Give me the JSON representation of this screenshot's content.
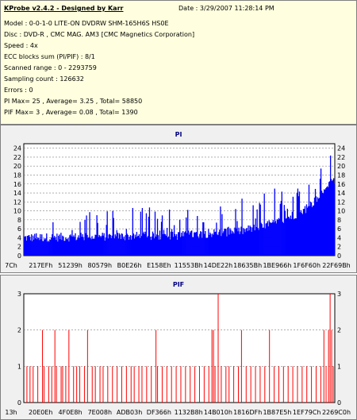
{
  "info": {
    "title": "KProbe v2.4.2 - Designed by Karr",
    "date": "Date : 3/29/2007 11:28:14 PM",
    "lines": [
      "Model : 0-0-1-0 LITE-ON DVDRW SHM-165H6S HS0E",
      "Disc : DVD-R , CMC MAG. AM3 [CMC Magnetics Corporation]",
      "Speed : 4x",
      "ECC blocks sum (PI/PIF) : 8/1",
      "Scanned range : 0 - 2293759",
      "Sampling count : 126632",
      "Errors : 0",
      "PI Max= 25 , Average= 3.25 , Total= 58850",
      "PIF Max= 3 , Average= 0.08 , Total= 1390"
    ]
  },
  "colors": {
    "pi_bars": "#0000ff",
    "pif_bars": "#ff0000",
    "panel_bg": "#f0f0f0",
    "title": "#000080"
  },
  "chart_data": [
    {
      "type": "bar",
      "title": "PI",
      "ylim": [
        0,
        25
      ],
      "yticks": [
        0,
        2,
        4,
        6,
        8,
        10,
        12,
        14,
        16,
        18,
        20,
        22,
        24
      ],
      "xtick_labels": [
        "7Ch",
        "217EFh",
        "51239h",
        "80579h",
        "B0E26h",
        "E158Eh",
        "11553Bh",
        "14DE22h",
        "18635Bh",
        "1BE966h",
        "1F6F60h",
        "22F69Bh"
      ],
      "grid": true,
      "baseline_profile": [
        [
          0,
          4
        ],
        [
          0.5,
          4.5
        ],
        [
          0.7,
          5.5
        ],
        [
          0.8,
          7
        ],
        [
          0.9,
          10
        ],
        [
          0.95,
          13
        ],
        [
          1,
          17
        ]
      ],
      "peak_profile": [
        [
          0,
          10
        ],
        [
          0.5,
          11
        ],
        [
          0.7,
          13
        ],
        [
          0.8,
          15
        ],
        [
          0.9,
          18
        ],
        [
          0.95,
          22
        ],
        [
          1,
          25
        ]
      ],
      "max": 25,
      "average": 3.25
    },
    {
      "type": "bar",
      "title": "PIF",
      "ylim": [
        0,
        3
      ],
      "yticks": [
        0,
        1,
        2,
        3
      ],
      "xtick_labels": [
        "13h",
        "20E0Eh",
        "4F0E8h",
        "7E008h",
        "ADB03h",
        "DF366h",
        "1132B8h",
        "14B010h",
        "1816DFh",
        "1B87E5h",
        "1EF79Ch",
        "2269C0h"
      ],
      "grid": true,
      "spikes": [
        [
          0.01,
          1
        ],
        [
          0.02,
          1
        ],
        [
          0.03,
          1
        ],
        [
          0.045,
          1
        ],
        [
          0.06,
          2
        ],
        [
          0.065,
          1
        ],
        [
          0.08,
          1
        ],
        [
          0.09,
          1
        ],
        [
          0.1,
          2
        ],
        [
          0.105,
          1
        ],
        [
          0.12,
          1
        ],
        [
          0.125,
          1
        ],
        [
          0.135,
          1
        ],
        [
          0.145,
          2
        ],
        [
          0.16,
          1
        ],
        [
          0.17,
          1
        ],
        [
          0.18,
          1
        ],
        [
          0.195,
          1
        ],
        [
          0.205,
          2
        ],
        [
          0.22,
          1
        ],
        [
          0.23,
          1
        ],
        [
          0.245,
          1
        ],
        [
          0.255,
          1
        ],
        [
          0.27,
          1
        ],
        [
          0.285,
          1
        ],
        [
          0.3,
          1
        ],
        [
          0.315,
          1
        ],
        [
          0.33,
          1
        ],
        [
          0.345,
          1
        ],
        [
          0.355,
          1
        ],
        [
          0.37,
          1
        ],
        [
          0.38,
          1
        ],
        [
          0.395,
          1
        ],
        [
          0.41,
          1
        ],
        [
          0.425,
          2
        ],
        [
          0.43,
          1
        ],
        [
          0.445,
          1
        ],
        [
          0.46,
          1
        ],
        [
          0.475,
          1
        ],
        [
          0.49,
          1
        ],
        [
          0.505,
          1
        ],
        [
          0.52,
          1
        ],
        [
          0.535,
          1
        ],
        [
          0.55,
          1
        ],
        [
          0.565,
          1
        ],
        [
          0.58,
          1
        ],
        [
          0.595,
          1
        ],
        [
          0.605,
          2
        ],
        [
          0.61,
          2
        ],
        [
          0.615,
          1
        ],
        [
          0.625,
          3
        ],
        [
          0.635,
          1
        ],
        [
          0.65,
          1
        ],
        [
          0.66,
          1
        ],
        [
          0.675,
          1
        ],
        [
          0.69,
          1
        ],
        [
          0.7,
          2
        ],
        [
          0.715,
          1
        ],
        [
          0.73,
          1
        ],
        [
          0.745,
          1
        ],
        [
          0.76,
          1
        ],
        [
          0.775,
          1
        ],
        [
          0.79,
          2
        ],
        [
          0.805,
          1
        ],
        [
          0.82,
          1
        ],
        [
          0.835,
          1
        ],
        [
          0.85,
          1
        ],
        [
          0.865,
          1
        ],
        [
          0.88,
          1
        ],
        [
          0.895,
          1
        ],
        [
          0.91,
          1
        ],
        [
          0.925,
          1
        ],
        [
          0.94,
          1
        ],
        [
          0.955,
          1
        ],
        [
          0.965,
          2
        ],
        [
          0.972,
          1
        ],
        [
          0.98,
          2
        ],
        [
          0.985,
          3
        ],
        [
          0.99,
          2
        ],
        [
          0.995,
          1
        ]
      ],
      "max": 3,
      "average": 0.08
    }
  ]
}
